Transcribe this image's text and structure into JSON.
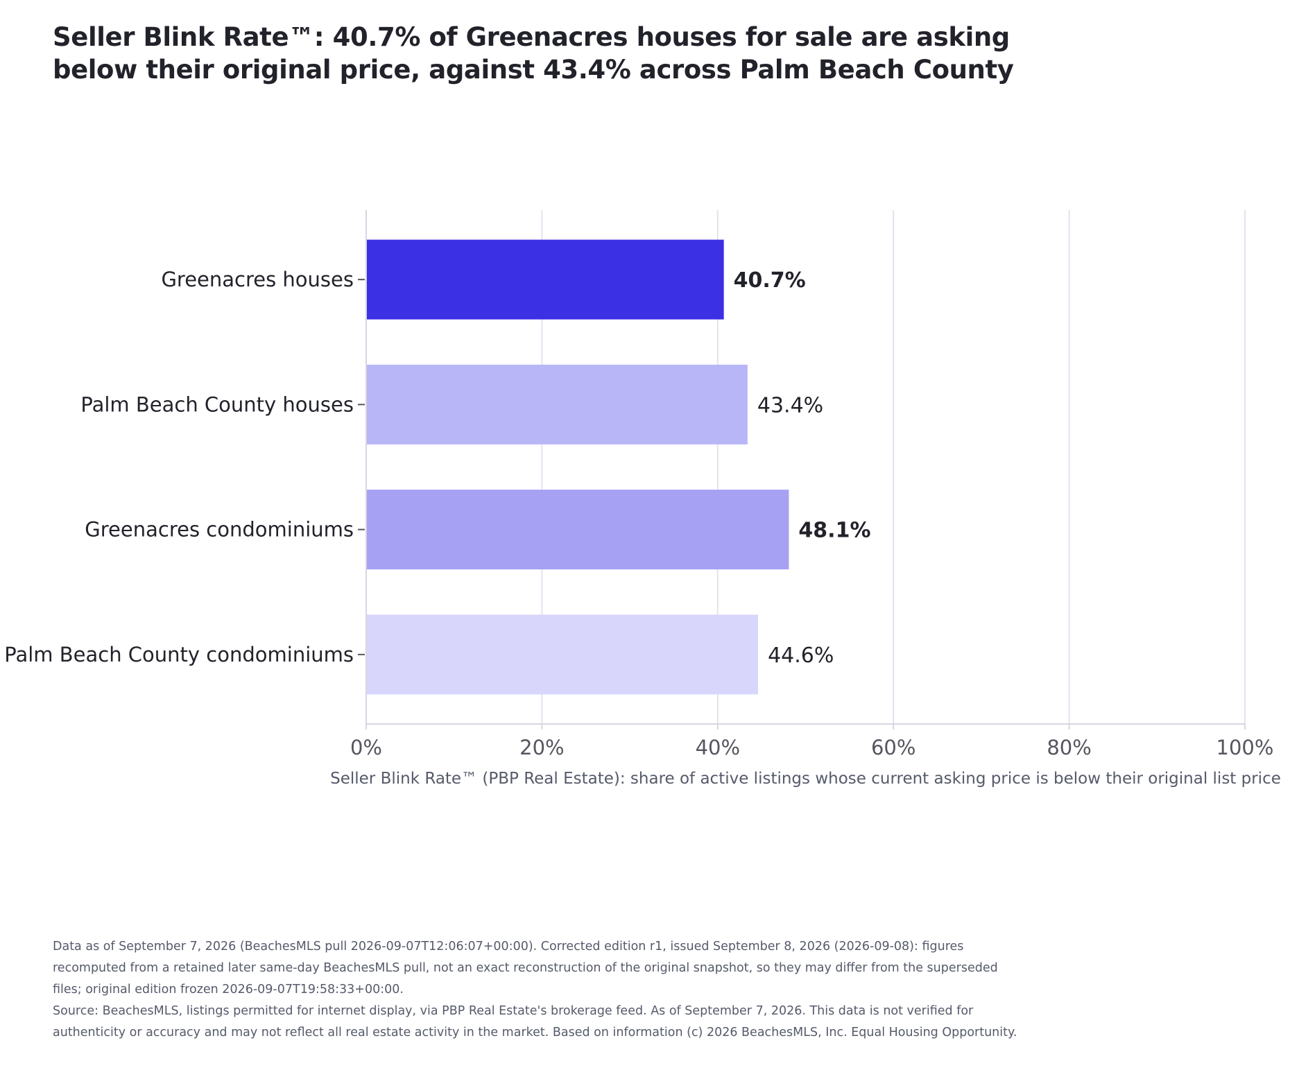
{
  "title_lines": [
    "Seller Blink Rate™: 40.7% of Greenacres houses for sale are asking",
    "below their original price, against 43.4% across Palm Beach County"
  ],
  "chart_data": {
    "type": "bar",
    "orientation": "horizontal",
    "categories": [
      "Greenacres houses",
      "Palm Beach County houses",
      "Greenacres condominiums",
      "Palm Beach County condominiums"
    ],
    "values": [
      40.7,
      43.4,
      48.1,
      44.6
    ],
    "value_labels": [
      "40.7%",
      "43.4%",
      "48.1%",
      "44.6%"
    ],
    "label_bold": [
      true,
      false,
      true,
      false
    ],
    "bar_colors": [
      "#3b30e4",
      "#b8b6f7",
      "#a7a1f4",
      "#d8d6fb"
    ],
    "xlim": [
      0,
      100
    ],
    "xticks": [
      0,
      20,
      40,
      60,
      80,
      100
    ],
    "xtick_labels": [
      "0%",
      "20%",
      "40%",
      "60%",
      "80%",
      "100%"
    ],
    "xlabel": "Seller Blink Rate™ (PBP Real Estate): share of active listings whose current asking price is below their original list price",
    "ylabel": "",
    "grid": "vertical",
    "legend": "none"
  },
  "footnote": {
    "data_note": "Data as of September 7, 2026 (BeachesMLS pull 2026-09-07T12:06:07+00:00). Corrected edition r1, issued September 8, 2026 (2026-09-08): figures recomputed from a retained later same-day BeachesMLS pull, not an exact reconstruction of the original snapshot, so they may differ from the superseded files; original edition frozen 2026-09-07T19:58:33+00:00.",
    "source_note": "Source: BeachesMLS, listings permitted for internet display, via PBP Real Estate's brokerage feed. As of September 7, 2026. This data is not verified for authenticity or accuracy and may not reflect all real estate activity in the market. Based on information (c) 2026 BeachesMLS, Inc. Equal Housing Opportunity."
  },
  "colors": {
    "grid": "#e3e3ef",
    "axis": "#d6d6e2",
    "tick_text": "#55555f",
    "label_text": "#22222b",
    "xlabel_text": "#555a6a"
  }
}
